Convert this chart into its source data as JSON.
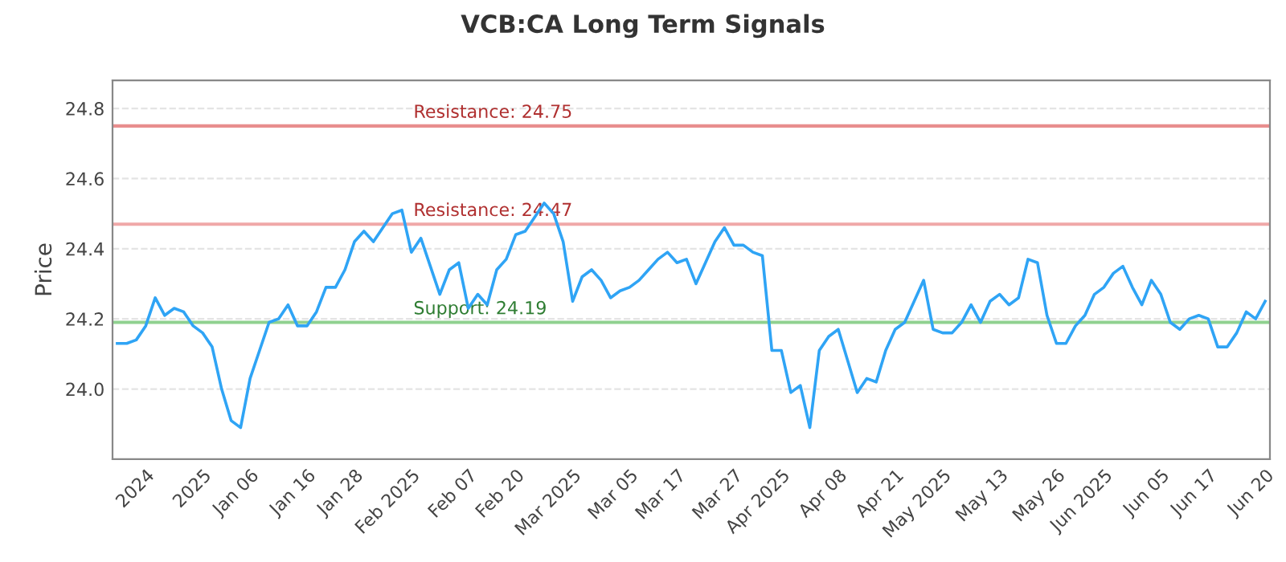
{
  "chart_data": {
    "type": "line",
    "title": "VCB:CA Long Term Signals",
    "ylabel": "Price",
    "categories": [
      null,
      null,
      null,
      "2024",
      null,
      null,
      null,
      null,
      null,
      "2025",
      null,
      null,
      null,
      null,
      "Jan 06",
      null,
      null,
      null,
      null,
      null,
      "Jan 16",
      null,
      null,
      null,
      null,
      "Jan 28",
      null,
      null,
      null,
      null,
      null,
      "Feb 2025",
      null,
      null,
      null,
      null,
      null,
      "Feb 07",
      null,
      null,
      null,
      null,
      "Feb 20",
      null,
      null,
      null,
      null,
      null,
      "Mar 2025",
      null,
      null,
      null,
      null,
      null,
      "Mar 05",
      null,
      null,
      null,
      null,
      "Mar 17",
      null,
      null,
      null,
      null,
      null,
      "Mar 27",
      null,
      null,
      null,
      null,
      "Apr 2025",
      null,
      null,
      null,
      null,
      null,
      "Apr 08",
      null,
      null,
      null,
      null,
      null,
      "Apr 21",
      null,
      null,
      null,
      null,
      "May 2025",
      null,
      null,
      null,
      null,
      null,
      "May 13",
      null,
      null,
      null,
      null,
      null,
      "May 26",
      null,
      null,
      null,
      null,
      "Jun 2025",
      null,
      null,
      null,
      null,
      null,
      "Jun 05",
      null,
      null,
      null,
      null,
      "Jun 17",
      null,
      null,
      null,
      null,
      null,
      "Jun 20"
    ],
    "series": [
      {
        "color": "#2fa4f5",
        "values": [
          24.13,
          24.13,
          24.14,
          24.18,
          24.26,
          24.21,
          24.23,
          24.22,
          24.18,
          24.16,
          24.12,
          24.0,
          23.91,
          23.89,
          24.03,
          24.11,
          24.19,
          24.2,
          24.24,
          24.18,
          24.18,
          24.22,
          24.29,
          24.29,
          24.34,
          24.42,
          24.45,
          24.42,
          24.46,
          24.5,
          24.51,
          24.39,
          24.43,
          24.35,
          24.27,
          24.34,
          24.36,
          24.23,
          24.27,
          24.24,
          24.34,
          24.37,
          24.44,
          24.45,
          24.49,
          24.53,
          24.5,
          24.42,
          24.25,
          24.32,
          24.34,
          24.31,
          24.26,
          24.28,
          24.29,
          24.31,
          24.34,
          24.37,
          24.39,
          24.36,
          24.37,
          24.3,
          24.36,
          24.42,
          24.46,
          24.41,
          24.41,
          24.39,
          24.38,
          24.11,
          24.11,
          23.99,
          24.01,
          23.89,
          24.11,
          24.15,
          24.17,
          24.08,
          23.99,
          24.03,
          24.02,
          24.11,
          24.17,
          24.19,
          24.25,
          24.31,
          24.17,
          24.16,
          24.16,
          24.19,
          24.24,
          24.19,
          24.25,
          24.27,
          24.24,
          24.26,
          24.37,
          24.36,
          24.21,
          24.13,
          24.13,
          24.18,
          24.21,
          24.27,
          24.29,
          24.33,
          24.35,
          24.29,
          24.24,
          24.31,
          24.27,
          24.19,
          24.17,
          24.2,
          24.21,
          24.2,
          24.12,
          24.12,
          24.16,
          24.22,
          24.2,
          24.25
        ]
      }
    ],
    "ylim": [
      23.8,
      24.88
    ],
    "yticks": [
      {
        "value": 24.0,
        "label": "24.0"
      },
      24.2,
      24.4,
      24.6,
      24.8
    ],
    "grid": "y",
    "marker": "none",
    "line_style": "solid",
    "legend": false,
    "ref_lines": [
      {
        "axis": "y",
        "value": 24.75,
        "label": "Resistance: 24.75",
        "color": "#e88e8e"
      },
      {
        "axis": "y",
        "value": 24.47,
        "label": "Resistance: 24.47",
        "color": "#f0a8a8"
      },
      {
        "axis": "y",
        "value": 24.19,
        "label": "Support: 24.19",
        "color": "#8fd18f"
      }
    ]
  }
}
